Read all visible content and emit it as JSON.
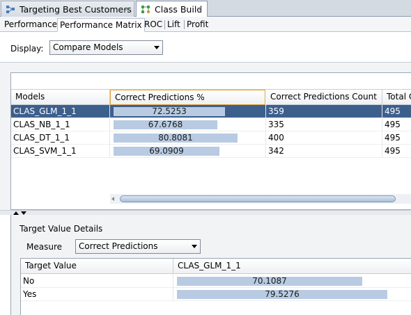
{
  "editor_tabs": [
    {
      "label": "Targeting Best Customers",
      "close": "×"
    },
    {
      "label": "Class Build",
      "close": "×"
    }
  ],
  "sub_tabs": [
    "Performance",
    "Performance Matrix",
    "ROC",
    "Lift",
    "Profit"
  ],
  "display": {
    "label": "Display:",
    "value": "Compare Models"
  },
  "models_grid": {
    "headers": [
      "Models",
      "Correct Predictions %",
      "Correct Predictions Count",
      "Total C"
    ],
    "rows": [
      {
        "model": "CLAS_GLM_1_1",
        "pct": "72.5253",
        "pct_value": 72.5253,
        "count": "359",
        "total": "495"
      },
      {
        "model": "CLAS_NB_1_1",
        "pct": "67.6768",
        "pct_value": 67.6768,
        "count": "335",
        "total": "495"
      },
      {
        "model": "CLAS_DT_1_1",
        "pct": "80.8081",
        "pct_value": 80.8081,
        "count": "400",
        "total": "495"
      },
      {
        "model": "CLAS_SVM_1_1",
        "pct": "69.0909",
        "pct_value": 69.0909,
        "count": "342",
        "total": "495"
      }
    ]
  },
  "details": {
    "title": "Target Value Details",
    "measure_label": "Measure",
    "measure_value": "Correct Predictions",
    "headers": [
      "Target Value",
      "CLAS_GLM_1_1"
    ],
    "rows": [
      {
        "target": "No",
        "value": "70.1087",
        "pct_value": 70.1087
      },
      {
        "target": "Yes",
        "value": "79.5276",
        "pct_value": 79.5276
      }
    ]
  },
  "colors": {
    "selection": "#3d5f8c",
    "bar": "#b8cbe2",
    "header_focus": "#e3a53c"
  }
}
